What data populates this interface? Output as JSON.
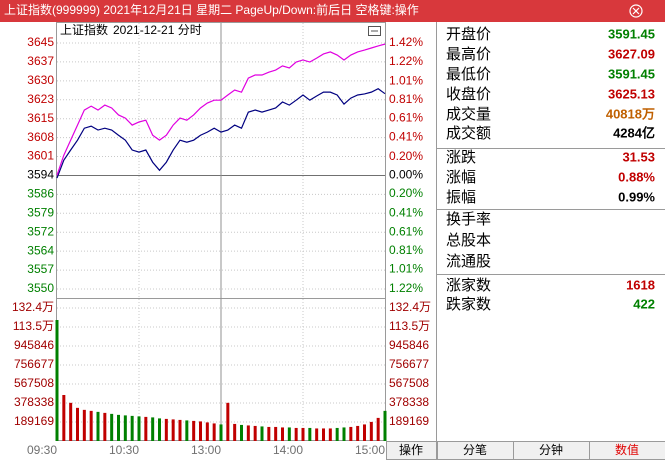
{
  "title_bar": {
    "title": "上证指数(999999)  2021年12月21日  星期二  PageUp/Down:前后日  空格键:操作"
  },
  "chart_data": [
    {
      "type": "line",
      "title": "上证指数",
      "subtitle": "2021-12-21 分时",
      "x": [
        "09:30",
        "09:35",
        "09:40",
        "09:45",
        "09:50",
        "09:55",
        "10:00",
        "10:05",
        "10:10",
        "10:15",
        "10:20",
        "10:25",
        "10:30",
        "10:35",
        "10:40",
        "10:45",
        "10:50",
        "10:55",
        "11:00",
        "11:05",
        "11:10",
        "11:15",
        "11:20",
        "11:25",
        "11:30",
        "13:05",
        "13:10",
        "13:15",
        "13:20",
        "13:25",
        "13:30",
        "13:35",
        "13:40",
        "13:45",
        "13:50",
        "13:55",
        "14:00",
        "14:05",
        "14:10",
        "14:15",
        "14:20",
        "14:25",
        "14:30",
        "14:35",
        "14:40",
        "14:45",
        "14:50",
        "14:55",
        "15:00"
      ],
      "xlim": [
        "09:30",
        "15:00"
      ],
      "series": [
        {
          "color": "#000080",
          "values": [
            3592.6,
            3599.5,
            3603.4,
            3607.2,
            3611.8,
            3612.6,
            3611.1,
            3611.8,
            3611.1,
            3609.1,
            3607.2,
            3603.4,
            3602.6,
            3603.4,
            3598.7,
            3595.6,
            3598.7,
            3603.4,
            3607.2,
            3606.4,
            3607.2,
            3609.1,
            3610.3,
            3611.8,
            3610.3,
            3611.1,
            3613.0,
            3611.8,
            3618.0,
            3618.8,
            3618.0,
            3618.8,
            3619.6,
            3621.9,
            3620.7,
            3622.6,
            3624.6,
            3622.6,
            3624.2,
            3625.7,
            3625.7,
            3624.6,
            3621.1,
            3623.4,
            3624.6,
            3625.0,
            3625.7,
            3627.0,
            3625.1
          ]
        },
        {
          "color": "#e000e0",
          "values": [
            3593.7,
            3601.4,
            3607.2,
            3613.0,
            3618.8,
            3620.3,
            3618.8,
            3620.7,
            3619.6,
            3616.9,
            3615.7,
            3613.0,
            3614.2,
            3614.9,
            3609.1,
            3607.2,
            3609.1,
            3613.0,
            3615.7,
            3614.9,
            3616.9,
            3619.6,
            3621.5,
            3622.6,
            3622.6,
            3624.6,
            3626.5,
            3625.7,
            3631.1,
            3632.3,
            3632.3,
            3633.4,
            3634.2,
            3635.8,
            3635.0,
            3637.3,
            3638.1,
            3637.3,
            3638.8,
            3640.4,
            3641.2,
            3640.0,
            3638.1,
            3640.0,
            3641.2,
            3641.9,
            3642.7,
            3643.5,
            3644.2
          ]
        }
      ],
      "ylim": [
        3549.86,
        3644.63
      ],
      "yticks": [
        {
          "value": 3549.86,
          "label": "3550"
        },
        {
          "value": 3557.15,
          "label": "3557"
        },
        {
          "value": 3564.44,
          "label": "3564"
        },
        {
          "value": 3571.73,
          "label": "3572"
        },
        {
          "value": 3579.02,
          "label": "3579"
        },
        {
          "value": 3586.31,
          "label": "3586"
        },
        {
          "value": 3593.6,
          "label": "3594"
        },
        {
          "value": 3600.89,
          "label": "3601"
        },
        {
          "value": 3608.18,
          "label": "3608"
        },
        {
          "value": 3615.47,
          "label": "3615"
        },
        {
          "value": 3622.76,
          "label": "3623"
        },
        {
          "value": 3630.05,
          "label": "3630"
        },
        {
          "value": 3637.34,
          "label": "3637"
        },
        {
          "value": 3644.63,
          "label": "3645"
        }
      ],
      "y2lim": [
        -1.22,
        1.42
      ],
      "y2ticks": [
        {
          "value": -1.22,
          "label": "1.22%"
        },
        {
          "value": -1.01,
          "label": "1.01%"
        },
        {
          "value": -0.81,
          "label": "0.81%"
        },
        {
          "value": -0.61,
          "label": "0.61%"
        },
        {
          "value": -0.41,
          "label": "0.41%"
        },
        {
          "value": -0.2,
          "label": "0.20%"
        },
        {
          "value": 0,
          "label": "0.00%"
        },
        {
          "value": 0.2,
          "label": "0.20%"
        },
        {
          "value": 0.41,
          "label": "0.41%"
        },
        {
          "value": 0.61,
          "label": "0.61%"
        },
        {
          "value": 0.81,
          "label": "0.81%"
        },
        {
          "value": 1.01,
          "label": "1.01%"
        },
        {
          "value": 1.22,
          "label": "1.22%"
        },
        {
          "value": 1.42,
          "label": "1.42%"
        }
      ],
      "up_color": "#c00000",
      "down_color": "#008000",
      "grid": true
    },
    {
      "type": "bar",
      "x": [
        "09:30",
        "09:35",
        "09:40",
        "09:45",
        "09:50",
        "09:55",
        "10:00",
        "10:05",
        "10:10",
        "10:15",
        "10:20",
        "10:25",
        "10:30",
        "10:35",
        "10:40",
        "10:45",
        "10:50",
        "10:55",
        "11:00",
        "11:05",
        "11:10",
        "11:15",
        "11:20",
        "11:25",
        "11:30",
        "13:05",
        "13:10",
        "13:15",
        "13:20",
        "13:25",
        "13:30",
        "13:35",
        "13:40",
        "13:45",
        "13:50",
        "13:55",
        "14:00",
        "14:05",
        "14:10",
        "14:15",
        "14:20",
        "14:25",
        "14:30",
        "14:35",
        "14:40",
        "14:45",
        "14:50",
        "14:55",
        "15:00"
      ],
      "xlim": [
        "09:30",
        "15:00"
      ],
      "values": [
        1204700,
        458000,
        380000,
        330000,
        310000,
        300000,
        290000,
        280000,
        270000,
        260000,
        255000,
        250000,
        245000,
        240000,
        235000,
        225000,
        220000,
        215000,
        210000,
        205000,
        200000,
        195000,
        185000,
        175000,
        165000,
        380000,
        170000,
        160000,
        155000,
        150000,
        145000,
        140000,
        140000,
        135000,
        135000,
        130000,
        130000,
        130000,
        125000,
        125000,
        125000,
        130000,
        135000,
        140000,
        150000,
        165000,
        190000,
        230000,
        300000
      ],
      "ylim": [
        0,
        1324183
      ],
      "yticks": [
        189169,
        378338,
        567508,
        756677,
        945846,
        {
          "value": 1135014,
          "label": "113.5万"
        },
        {
          "value": 1324183,
          "label": "132.4万"
        }
      ],
      "xticks": [
        "09:30",
        "10:30",
        "13:00",
        "14:00",
        "15:00"
      ],
      "up_color": "#c00000",
      "down_color": "#008000",
      "axis_color": "#a00000",
      "grid": true
    }
  ],
  "quote_panel": {
    "groups": [
      [
        {
          "label": "开盘价",
          "value": "3591.45",
          "color": "#008000"
        },
        {
          "label": "最高价",
          "value": "3627.09",
          "color": "#c00000"
        },
        {
          "label": "最低价",
          "value": "3591.45",
          "color": "#008000"
        },
        {
          "label": "收盘价",
          "value": "3625.13",
          "color": "#c00000"
        },
        {
          "label": "成交量",
          "value": "40818万",
          "color": "#c06000"
        },
        {
          "label": "成交额",
          "value": "4284亿",
          "color": "#000000"
        }
      ],
      [
        {
          "label": "涨跌",
          "value": "31.53",
          "color": "#c00000"
        },
        {
          "label": "涨幅",
          "value": "0.88%",
          "color": "#c00000"
        },
        {
          "label": "振幅",
          "value": "0.99%",
          "color": "#000000"
        }
      ],
      [
        {
          "label": "换手率"
        },
        {
          "label": "总股本"
        },
        {
          "label": "流通股"
        }
      ],
      [
        {
          "label": "涨家数",
          "value": "1618",
          "color": "#c00000"
        },
        {
          "label": "跌家数",
          "value": "422",
          "color": "#008000"
        }
      ]
    ]
  },
  "tabs": {
    "left": "操作",
    "items": [
      "分笔",
      "分钟",
      "数值"
    ],
    "active": 2
  }
}
